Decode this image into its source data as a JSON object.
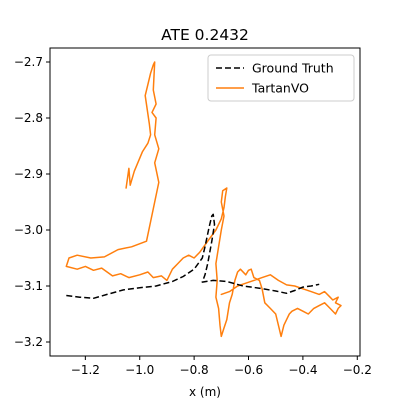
{
  "chart_data": {
    "type": "line",
    "title": "ATE 0.2432",
    "xlabel": "x (m)",
    "ylabel": "",
    "xlim": [
      -1.33,
      -0.19
    ],
    "ylim": [
      -3.225,
      -2.675
    ],
    "xticks": [
      -1.2,
      -1.0,
      -0.8,
      -0.6,
      -0.4,
      -0.2
    ],
    "xtick_labels": [
      "−1.2",
      "−1.0",
      "−0.8",
      "−0.6",
      "−0.4",
      "−0.2"
    ],
    "yticks": [
      -3.2,
      -3.1,
      -3.0,
      -2.9,
      -2.8,
      -2.7
    ],
    "ytick_labels": [
      "−3.2",
      "−3.1",
      "−3.0",
      "−2.9",
      "−2.8",
      "−2.7"
    ],
    "grid": false,
    "legend_position": "top-right",
    "series": [
      {
        "name": "Ground Truth",
        "color": "#000000",
        "style": "dashed",
        "points": [
          [
            -1.27,
            -3.117
          ],
          [
            -1.22,
            -3.12
          ],
          [
            -1.17,
            -3.122
          ],
          [
            -1.12,
            -3.115
          ],
          [
            -1.06,
            -3.107
          ],
          [
            -1.0,
            -3.103
          ],
          [
            -0.94,
            -3.1
          ],
          [
            -0.88,
            -3.092
          ],
          [
            -0.84,
            -3.083
          ],
          [
            -0.8,
            -3.07
          ],
          [
            -0.77,
            -3.05
          ],
          [
            -0.76,
            -3.03
          ],
          [
            -0.745,
            -2.995
          ],
          [
            -0.735,
            -2.975
          ],
          [
            -0.73,
            -2.972
          ],
          [
            -0.725,
            -2.99
          ],
          [
            -0.735,
            -3.02
          ],
          [
            -0.75,
            -3.06
          ],
          [
            -0.76,
            -3.08
          ],
          [
            -0.77,
            -3.093
          ],
          [
            -0.73,
            -3.09
          ],
          [
            -0.68,
            -3.092
          ],
          [
            -0.62,
            -3.1
          ],
          [
            -0.56,
            -3.104
          ],
          [
            -0.5,
            -3.109
          ],
          [
            -0.46,
            -3.113
          ],
          [
            -0.43,
            -3.108
          ],
          [
            -0.4,
            -3.102
          ],
          [
            -0.37,
            -3.1
          ],
          [
            -0.34,
            -3.097
          ]
        ]
      },
      {
        "name": "TartanVO",
        "color": "#ff7f0e",
        "style": "solid",
        "points": [
          [
            -1.05,
            -2.925
          ],
          [
            -1.04,
            -2.89
          ],
          [
            -1.035,
            -2.92
          ],
          [
            -1.02,
            -2.895
          ],
          [
            -0.99,
            -2.86
          ],
          [
            -0.97,
            -2.845
          ],
          [
            -0.96,
            -2.83
          ],
          [
            -0.965,
            -2.81
          ],
          [
            -0.98,
            -2.76
          ],
          [
            -0.97,
            -2.74
          ],
          [
            -0.96,
            -2.72
          ],
          [
            -0.95,
            -2.705
          ],
          [
            -0.945,
            -2.7
          ],
          [
            -0.95,
            -2.75
          ],
          [
            -0.94,
            -2.775
          ],
          [
            -0.955,
            -2.79
          ],
          [
            -0.94,
            -2.8
          ],
          [
            -0.945,
            -2.83
          ],
          [
            -0.93,
            -2.855
          ],
          [
            -0.945,
            -2.88
          ],
          [
            -0.93,
            -2.915
          ],
          [
            -0.945,
            -2.95
          ],
          [
            -0.96,
            -2.985
          ],
          [
            -0.975,
            -3.02
          ],
          [
            -1.03,
            -3.03
          ],
          [
            -1.08,
            -3.035
          ],
          [
            -1.13,
            -3.048
          ],
          [
            -1.18,
            -3.05
          ],
          [
            -1.23,
            -3.045
          ],
          [
            -1.26,
            -3.05
          ],
          [
            -1.27,
            -3.065
          ],
          [
            -1.23,
            -3.07
          ],
          [
            -1.2,
            -3.065
          ],
          [
            -1.17,
            -3.072
          ],
          [
            -1.14,
            -3.068
          ],
          [
            -1.12,
            -3.075
          ],
          [
            -1.1,
            -3.082
          ],
          [
            -1.07,
            -3.078
          ],
          [
            -1.04,
            -3.085
          ],
          [
            -1.0,
            -3.08
          ],
          [
            -0.97,
            -3.075
          ],
          [
            -0.95,
            -3.085
          ],
          [
            -0.92,
            -3.082
          ],
          [
            -0.9,
            -3.09
          ],
          [
            -0.88,
            -3.07
          ],
          [
            -0.86,
            -3.06
          ],
          [
            -0.84,
            -3.05
          ],
          [
            -0.82,
            -3.045
          ],
          [
            -0.8,
            -3.05
          ],
          [
            -0.78,
            -3.04
          ],
          [
            -0.75,
            -3.02
          ],
          [
            -0.72,
            -3.0
          ],
          [
            -0.7,
            -2.98
          ],
          [
            -0.69,
            -2.96
          ],
          [
            -0.685,
            -2.94
          ],
          [
            -0.68,
            -2.925
          ],
          [
            -0.695,
            -2.93
          ],
          [
            -0.7,
            -2.95
          ],
          [
            -0.69,
            -2.975
          ],
          [
            -0.7,
            -3.0
          ],
          [
            -0.71,
            -3.03
          ],
          [
            -0.72,
            -3.06
          ],
          [
            -0.715,
            -3.09
          ],
          [
            -0.72,
            -3.12
          ],
          [
            -0.71,
            -3.14
          ],
          [
            -0.705,
            -3.17
          ],
          [
            -0.7,
            -3.19
          ],
          [
            -0.69,
            -3.175
          ],
          [
            -0.68,
            -3.16
          ],
          [
            -0.67,
            -3.13
          ],
          [
            -0.66,
            -3.115
          ],
          [
            -0.65,
            -3.09
          ],
          [
            -0.64,
            -3.075
          ],
          [
            -0.63,
            -3.07
          ],
          [
            -0.61,
            -3.08
          ],
          [
            -0.6,
            -3.072
          ],
          [
            -0.59,
            -3.07
          ],
          [
            -0.58,
            -3.085
          ],
          [
            -0.56,
            -3.09
          ],
          [
            -0.55,
            -3.105
          ],
          [
            -0.54,
            -3.13
          ],
          [
            -0.52,
            -3.14
          ],
          [
            -0.5,
            -3.15
          ],
          [
            -0.49,
            -3.17
          ],
          [
            -0.48,
            -3.19
          ],
          [
            -0.47,
            -3.17
          ],
          [
            -0.46,
            -3.16
          ],
          [
            -0.45,
            -3.15
          ],
          [
            -0.44,
            -3.145
          ],
          [
            -0.42,
            -3.14
          ],
          [
            -0.4,
            -3.145
          ],
          [
            -0.38,
            -3.15
          ],
          [
            -0.36,
            -3.14
          ],
          [
            -0.34,
            -3.135
          ],
          [
            -0.32,
            -3.13
          ],
          [
            -0.3,
            -3.14
          ],
          [
            -0.28,
            -3.15
          ],
          [
            -0.27,
            -3.14
          ],
          [
            -0.26,
            -3.135
          ],
          [
            -0.28,
            -3.13
          ],
          [
            -0.27,
            -3.12
          ],
          [
            -0.29,
            -3.125
          ],
          [
            -0.3,
            -3.12
          ],
          [
            -0.32,
            -3.11
          ],
          [
            -0.34,
            -3.115
          ],
          [
            -0.37,
            -3.11
          ],
          [
            -0.4,
            -3.105
          ],
          [
            -0.43,
            -3.1
          ],
          [
            -0.46,
            -3.098
          ],
          [
            -0.49,
            -3.09
          ],
          [
            -0.52,
            -3.08
          ],
          [
            -0.55,
            -3.085
          ],
          [
            -0.58,
            -3.09
          ],
          [
            -0.61,
            -3.095
          ],
          [
            -0.64,
            -3.1
          ],
          [
            -0.67,
            -3.11
          ],
          [
            -0.7,
            -3.115
          ]
        ]
      }
    ]
  }
}
